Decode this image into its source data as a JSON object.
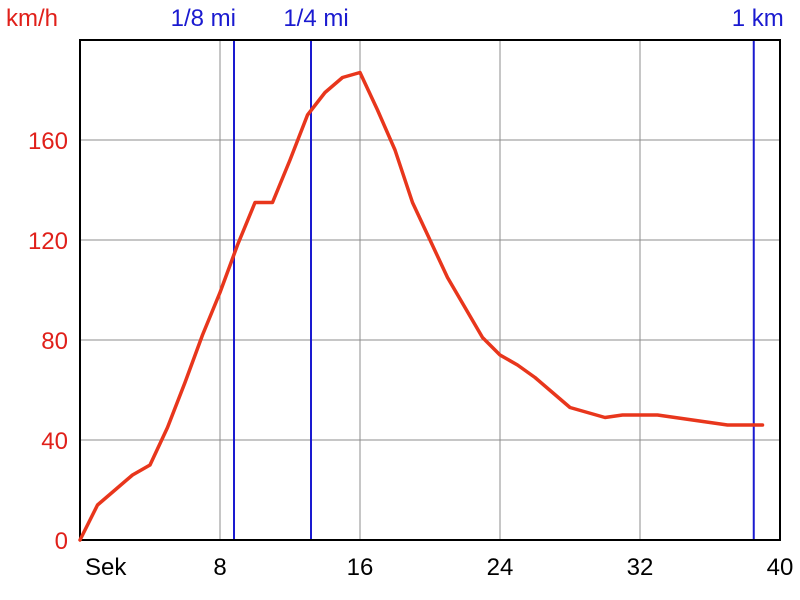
{
  "chart_data": {
    "type": "line",
    "ylabel": "km/h",
    "xlabel": "Sek",
    "xlim": [
      0,
      40
    ],
    "ylim": [
      0,
      200
    ],
    "x_ticks": [
      8,
      16,
      24,
      32,
      40
    ],
    "y_ticks": [
      0,
      40,
      80,
      120,
      160
    ],
    "grid": true,
    "colors": {
      "line": "#e8361c",
      "markers": "#1a1ad0",
      "ytext": "#e0201a",
      "grid": "#8c8c8c",
      "axis": "#000000"
    },
    "series": [
      {
        "x": [
          0,
          1,
          2,
          3,
          4,
          5,
          6,
          7,
          8,
          9,
          10,
          11,
          12,
          13,
          14,
          15,
          16,
          17,
          18,
          19,
          20,
          21,
          22,
          23,
          24,
          25,
          26,
          27,
          28,
          29,
          30,
          31,
          32,
          33,
          34,
          35,
          36,
          37,
          38,
          39
        ],
        "y": [
          0,
          14,
          20,
          26,
          30,
          45,
          63,
          82,
          99,
          118,
          135,
          135,
          152,
          170,
          179,
          185,
          187,
          172,
          156,
          135,
          120,
          105,
          93,
          81,
          74,
          70,
          65,
          59,
          53,
          51,
          49,
          50,
          50,
          50,
          49,
          48,
          47,
          46,
          46,
          46
        ]
      }
    ],
    "markers": [
      {
        "label": "1/8 mi",
        "x": 8.8
      },
      {
        "label": "1/4 mi",
        "x": 13.2
      },
      {
        "label": "1 km",
        "x": 38.5
      }
    ]
  }
}
